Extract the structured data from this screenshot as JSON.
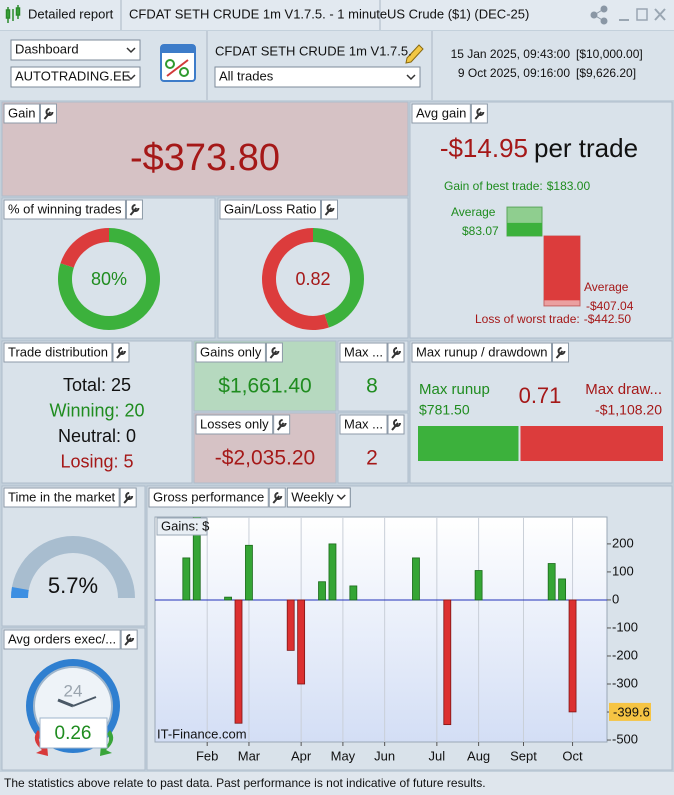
{
  "title_bar": {
    "tabs": [
      "Detailed report",
      "CFDAT SETH CRUDE 1m V1.7.5. - 1 minute",
      "US Crude ($1) (DEC-25)"
    ]
  },
  "toolbar": {
    "view_select": "Dashboard",
    "account_select": "AUTOTRADING.EE",
    "strategy": "CFDAT SETH CRUDE 1m V1.7.5.",
    "trades_select": "All trades",
    "start": "15 Jan 2025, 09:43:00",
    "start_balance": "[$10,000.00]",
    "end": "9 Oct 2025, 09:16:00",
    "end_balance": "[$9,626.20]"
  },
  "gain": {
    "title": "Gain",
    "value": "-$373.80"
  },
  "avg_gain": {
    "title": "Avg gain",
    "value": "-$14.95",
    "unit": "per trade",
    "best_trade_label": "Gain of best trade:",
    "best_trade": 183,
    "best_trade_value_label": "$183.00",
    "average_win_label": "Average",
    "average_win": 83.07,
    "average_win_value_label": "$83.07",
    "average_loss_label": "Average",
    "average_loss": -407.04,
    "average_loss_value_label": "-$407.04",
    "worst_trade_label": "Loss of worst trade:",
    "worst_trade": -442.5,
    "worst_trade_value_label": "-$442.50"
  },
  "winning_trades": {
    "title": "% of winning trades",
    "value": 80,
    "value_label": "80%"
  },
  "gain_loss_ratio": {
    "title": "Gain/Loss Ratio",
    "value": 0.82
  },
  "trade_distribution": {
    "title": "Trade distribution",
    "rows": [
      {
        "label": "Total:",
        "value": 25
      },
      {
        "label": "Winning:",
        "value": 20
      },
      {
        "label": "Neutral:",
        "value": 0
      },
      {
        "label": "Losing:",
        "value": 5
      }
    ]
  },
  "gains_only": {
    "title": "Gains only",
    "value": 1661.4,
    "value_label": "$1,661.40"
  },
  "max_wins": {
    "title": "Max ...",
    "value": 8
  },
  "losses_only": {
    "title": "Losses only",
    "value": -2035.2,
    "value_label": "-$2,035.20"
  },
  "max_losses": {
    "title": "Max ...",
    "value": 2
  },
  "runup_drawdown": {
    "title": "Max runup / drawdown",
    "runup_label": "Max runup",
    "runup": 781.5,
    "runup_value_label": "$781.50",
    "ratio": 0.71,
    "drawdown_label": "Max draw...",
    "drawdown": -1108.2,
    "drawdown_value_label": "-$1,108.20"
  },
  "time_in_market": {
    "title": "Time in the market",
    "value": 5.7,
    "value_label": "5.7%"
  },
  "avg_orders": {
    "title": "Avg orders exec/...",
    "value": 0.26,
    "clock_label": 24
  },
  "gross_performance": {
    "title": "Gross performance",
    "period_select": "Weekly"
  },
  "chart_data": {
    "type": "bar",
    "title": "Gains: $",
    "watermark": "IT-Finance.com",
    "x": [
      3,
      4,
      7,
      8,
      9,
      13,
      14,
      16,
      17,
      19,
      25,
      28,
      31,
      38,
      39,
      40
    ],
    "values": [
      150,
      310,
      10,
      -440,
      195,
      -180,
      -300,
      65,
      200,
      50,
      150,
      -445,
      105,
      130,
      75,
      -399.6
    ],
    "color_up": "#35a535",
    "color_down": "#dc3030",
    "xlim": [
      0,
      43.3
    ],
    "xticks": [
      {
        "value": 5,
        "label": "Feb"
      },
      {
        "value": 9,
        "label": "Mar"
      },
      {
        "value": 14,
        "label": "Apr"
      },
      {
        "value": 18,
        "label": "May"
      },
      {
        "value": 22,
        "label": "Jun"
      },
      {
        "value": 27,
        "label": "Jul"
      },
      {
        "value": 31,
        "label": "Aug"
      },
      {
        "value": 35.3,
        "label": "Sept"
      },
      {
        "value": 40,
        "label": "Oct"
      }
    ],
    "ylim": [
      -507,
      296
    ],
    "yticks": [
      200,
      100,
      0,
      -100,
      -200,
      -300,
      -400,
      -500
    ],
    "last_value_marker": -399.6,
    "grid": true
  },
  "footer": "The statistics above relate to past data. Past performance is not indicative of future results."
}
